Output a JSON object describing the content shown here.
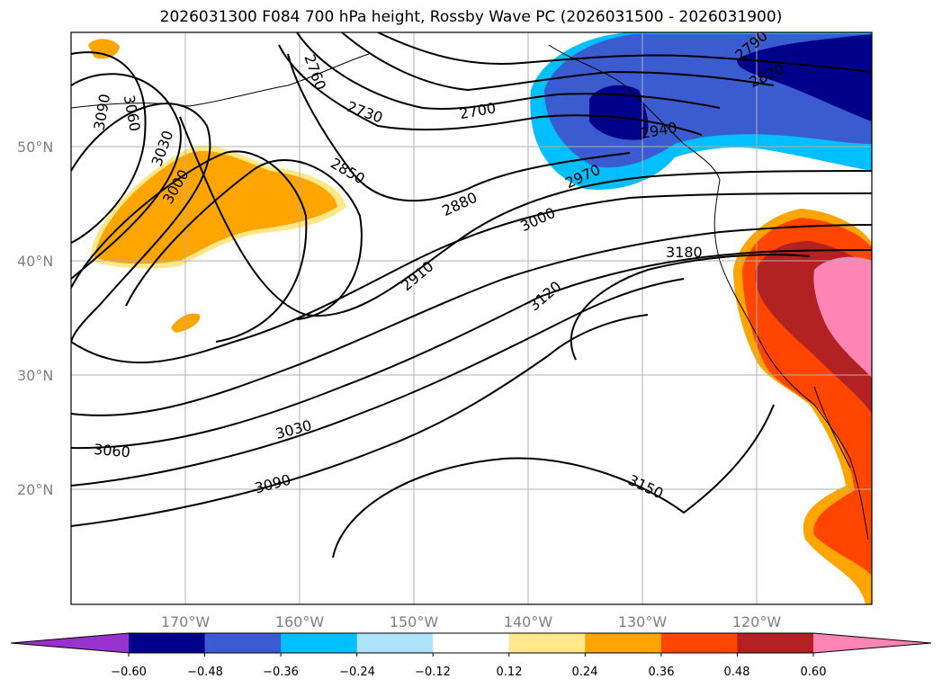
{
  "title": "2026031300 F084 700 hPa height, Rossby Wave PC (2026031500 - 2026031900)",
  "map": {
    "lat_labels": [
      "50°N",
      "40°N",
      "30°N",
      "20°N"
    ],
    "lon_labels": [
      "170°W",
      "160°W",
      "150°W",
      "140°W",
      "130°W",
      "120°W"
    ],
    "grid": true
  },
  "contour_labels": [
    "3090",
    "3060",
    "3030",
    "3000",
    "2760",
    "2730",
    "2700",
    "2790",
    "2820",
    "2850",
    "2880",
    "2910",
    "2940",
    "2970",
    "3000",
    "3120",
    "3180",
    "3030",
    "3060",
    "3090",
    "3150"
  ],
  "colorbar": {
    "colors": [
      "#9932CC",
      "#00008B",
      "#3A5CD0",
      "#00BFFF",
      "#ADE2FA",
      "#FFFFFF",
      "#FFE88A",
      "#FFA500",
      "#FF4500",
      "#B22222",
      "#FF85B4"
    ],
    "tick_labels": [
      "−0.60",
      "−0.48",
      "−0.36",
      "−0.24",
      "−0.12",
      "0.12",
      "0.24",
      "0.36",
      "0.48",
      "0.60"
    ]
  }
}
